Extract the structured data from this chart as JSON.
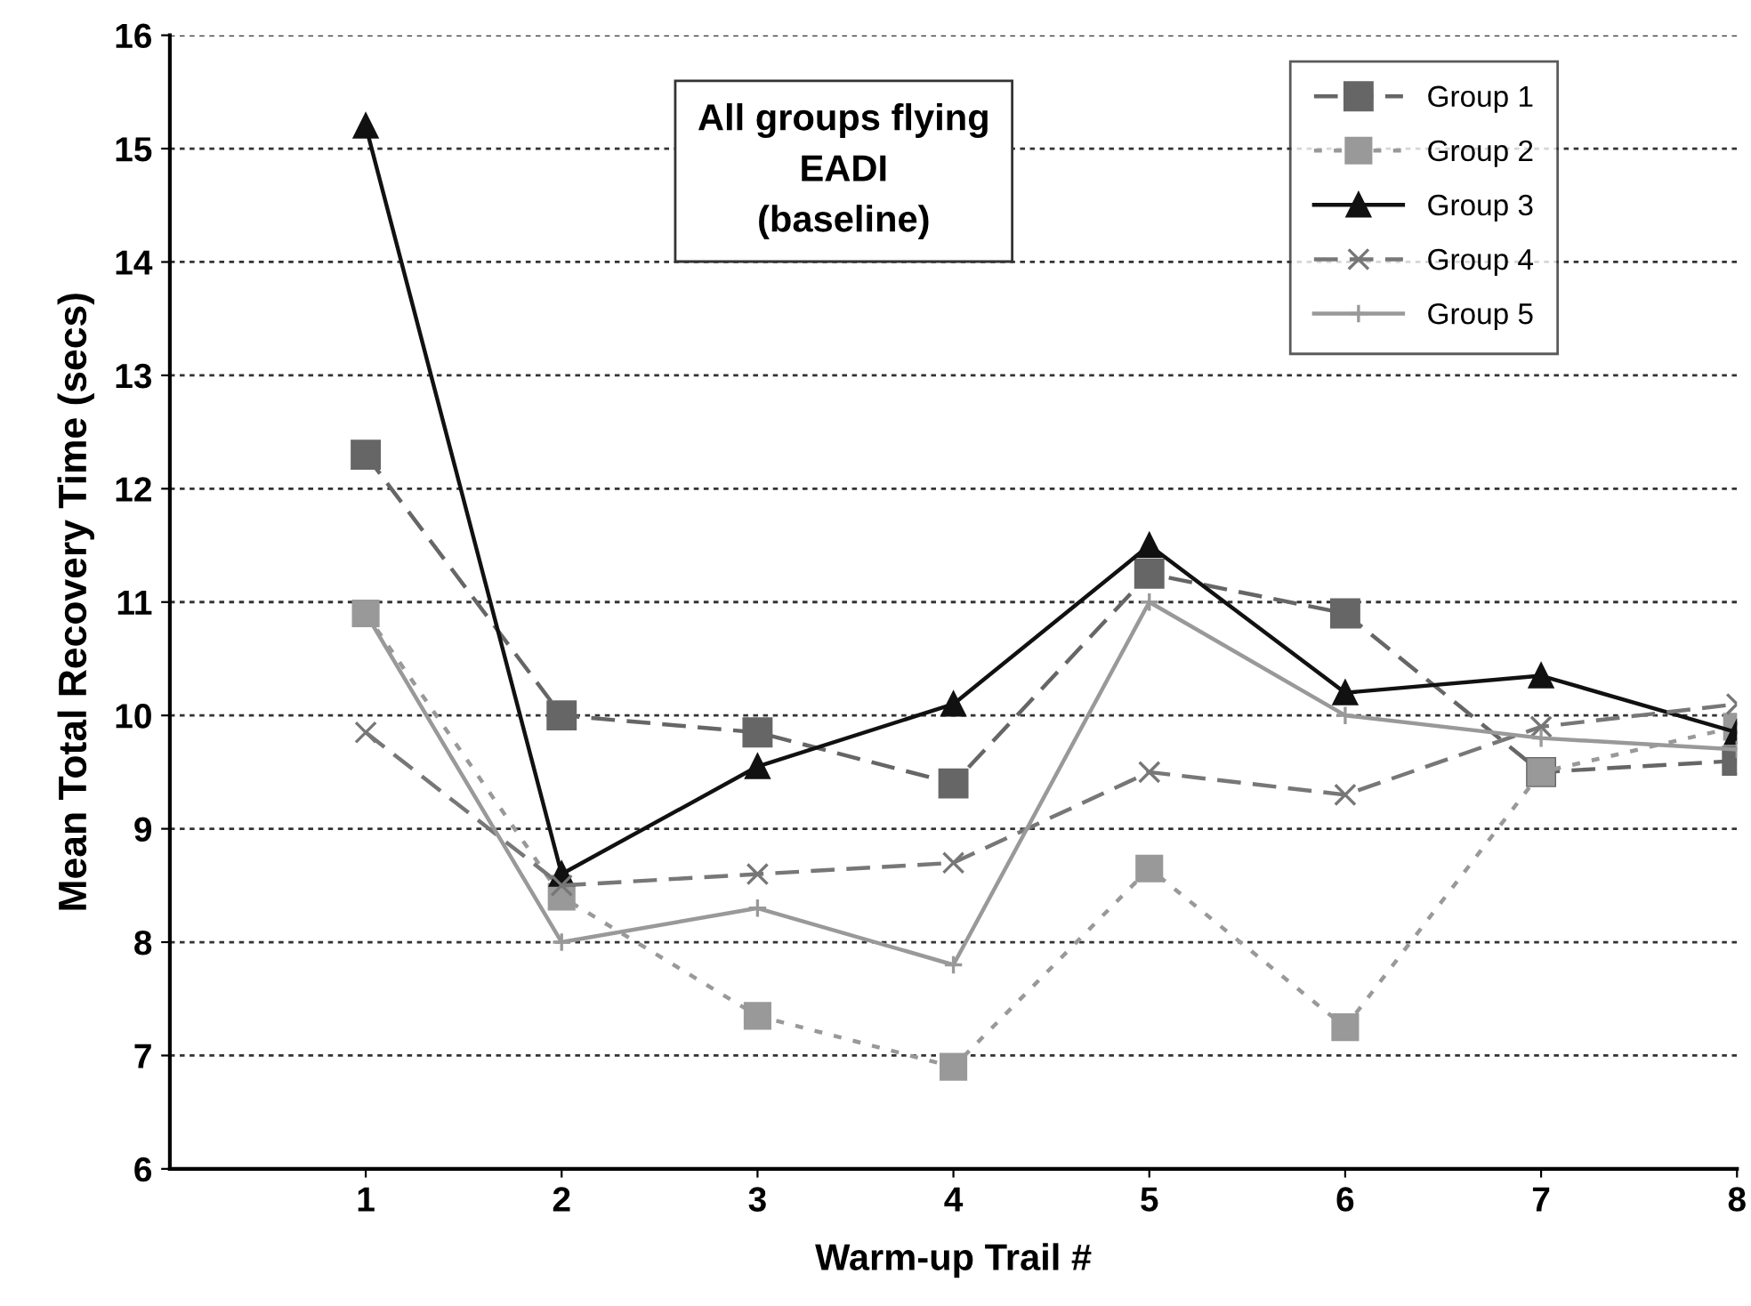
{
  "chart_data": {
    "type": "line",
    "xlabel": "Warm-up Trail #",
    "ylabel": "Mean Total Recovery Time (secs)",
    "x": [
      1,
      2,
      3,
      4,
      5,
      6,
      7,
      8
    ],
    "xlim": [
      0,
      8
    ],
    "xticks": [
      1,
      2,
      3,
      4,
      5,
      6,
      7,
      8
    ],
    "ylim": [
      6,
      16
    ],
    "yticks": [
      6,
      7,
      8,
      9,
      10,
      11,
      12,
      13,
      14,
      15,
      16
    ],
    "grid": "y",
    "legend": "top right",
    "annotations": [
      "All groups flying\nEADI\n(baseline)"
    ],
    "series": [
      {
        "name": "Group 1",
        "color": "#666666",
        "marker": "square",
        "line_style": "dashed",
        "values": [
          12.3,
          10.0,
          9.85,
          9.4,
          11.25,
          10.9,
          9.5,
          9.6
        ]
      },
      {
        "name": "Group 2",
        "color": "#999999",
        "marker": "square",
        "line_style": "dotted",
        "values": [
          10.9,
          8.4,
          7.35,
          6.9,
          8.65,
          7.25,
          9.5,
          9.9
        ]
      },
      {
        "name": "Group 3",
        "color": "#111111",
        "marker": "triangle",
        "line_style": "solid",
        "values": [
          15.2,
          8.6,
          9.55,
          10.1,
          11.5,
          10.2,
          10.35,
          9.85
        ]
      },
      {
        "name": "Group 4",
        "color": "#777777",
        "marker": "cross",
        "line_style": "dashed",
        "values": [
          9.85,
          8.5,
          8.6,
          8.7,
          9.5,
          9.3,
          9.9,
          10.1
        ]
      },
      {
        "name": "Group 5",
        "color": "#999999",
        "marker": "plus",
        "line_style": "solid",
        "values": [
          10.9,
          8.0,
          8.3,
          7.8,
          11.0,
          10.0,
          9.8,
          9.7
        ]
      }
    ]
  }
}
